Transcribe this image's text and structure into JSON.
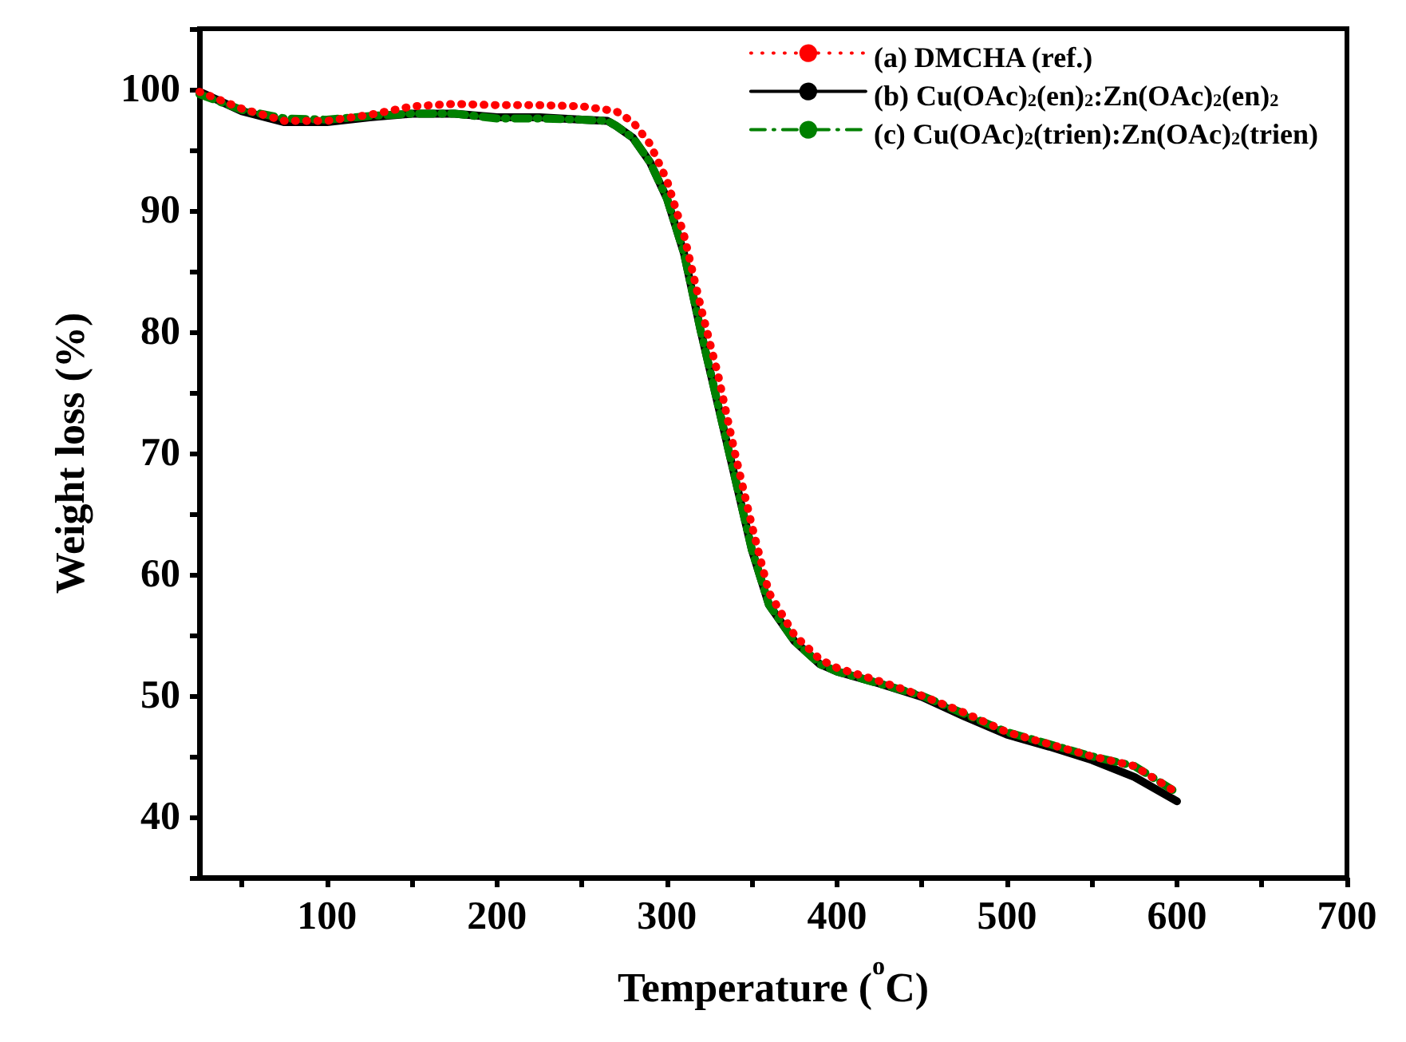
{
  "chart_data": {
    "type": "line",
    "xlabel": "Temperature ($^{o}$C)",
    "ylabel": "Weight loss (%)",
    "xlim": [
      25,
      700
    ],
    "ylim": [
      35,
      105
    ],
    "xticks": [
      {
        "value": 50,
        "label": null
      },
      100,
      {
        "value": 150,
        "label": null
      },
      200,
      {
        "value": 250,
        "label": null
      },
      300,
      {
        "value": 350,
        "label": null
      },
      400,
      {
        "value": 450,
        "label": null
      },
      500,
      {
        "value": 550,
        "label": null
      },
      600,
      {
        "value": 650,
        "label": null
      },
      700
    ],
    "yticks": [
      {
        "value": 35,
        "label": null
      },
      40,
      {
        "value": 45,
        "label": null
      },
      50,
      {
        "value": 55,
        "label": null
      },
      60,
      {
        "value": 65,
        "label": null
      },
      70,
      {
        "value": 75,
        "label": null
      },
      80,
      {
        "value": 85,
        "label": null
      },
      90,
      {
        "value": 95,
        "label": null
      },
      100,
      {
        "value": 105,
        "label": null
      }
    ],
    "grid": false,
    "legend": "top right",
    "marker": "none",
    "x": [
      25,
      50,
      75,
      100,
      125,
      150,
      175,
      200,
      225,
      250,
      265,
      270,
      280,
      290,
      300,
      310,
      320,
      330,
      340,
      350,
      360,
      375,
      390,
      400,
      425,
      450,
      475,
      500,
      525,
      550,
      575,
      600
    ],
    "series": [
      {
        "name": "(a) DMCHA (ref.)",
        "color": "#ff0000",
        "line_style": "dotted",
        "x": [
          25,
          50,
          75,
          100,
          125,
          150,
          175,
          200,
          225,
          250,
          265,
          270,
          280,
          290,
          300,
          310,
          320,
          330,
          340,
          350,
          360,
          375,
          390,
          400,
          425,
          450,
          475,
          500,
          525,
          550,
          575,
          600
        ],
        "values": [
          99.8,
          98.4,
          97.4,
          97.4,
          97.9,
          98.6,
          98.8,
          98.7,
          98.7,
          98.6,
          98.3,
          98.2,
          97.3,
          95.5,
          92.5,
          88,
          82,
          76.5,
          70,
          64,
          58.5,
          55,
          53,
          52.3,
          51.2,
          50,
          48.6,
          47,
          46,
          45,
          44.2,
          42
        ]
      },
      {
        "name": "(b) Cu(OAc)$_{2}$(en)$_{2}$:Zn(OAc)$_{2}$(en)$_{2}$",
        "color": "#000000",
        "line_style": "solid",
        "values": [
          99.8,
          98.2,
          97.3,
          97.3,
          97.7,
          98,
          98,
          97.7,
          97.7,
          97.5,
          97.4,
          97,
          96,
          94,
          91,
          86.5,
          80,
          74,
          68,
          62,
          57.5,
          54.5,
          52.6,
          52,
          51,
          49.9,
          48.3,
          46.8,
          45.8,
          44.7,
          43.3,
          41.3
        ]
      },
      {
        "name": "(c) Cu(OAc)$_{2}$(trien):Zn(OAc)$_{2}$(trien)",
        "color": "#008000",
        "line_style": "dashed",
        "values": [
          99.6,
          98.3,
          97.6,
          97.5,
          97.8,
          98,
          98,
          97.6,
          97.6,
          97.5,
          97.4,
          97,
          96,
          94,
          91,
          86.5,
          80,
          74,
          68,
          62,
          57.5,
          54.5,
          52.6,
          52,
          51,
          50,
          48.5,
          47,
          46,
          45,
          44.2,
          42
        ]
      }
    ]
  }
}
